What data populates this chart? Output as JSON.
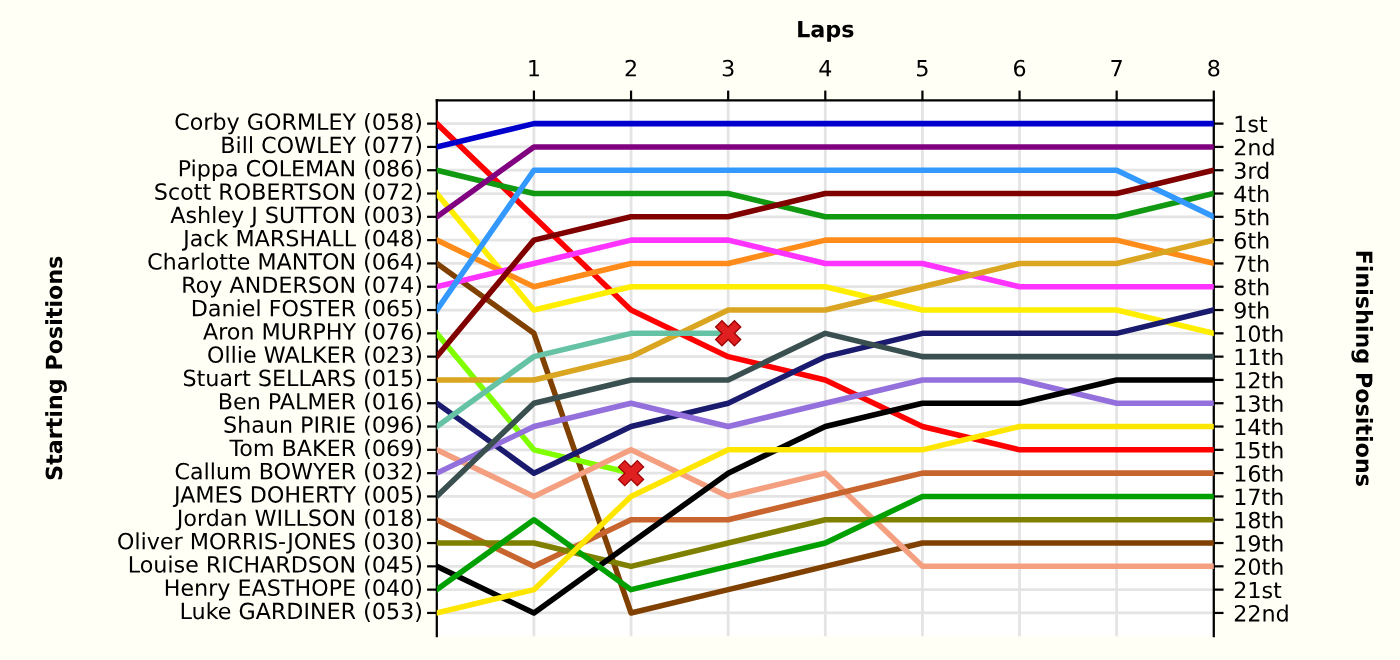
{
  "chart_data": {
    "type": "line",
    "xlabel": "Laps",
    "ylabel": "Finishing Positions",
    "annotations": [
      "Starting Positions",
      "Corby GORMLEY (058)",
      "Bill COWLEY (077)",
      "Pippa COLEMAN (086)",
      "Scott ROBERTSON (072)",
      "Ashley J SUTTON (003)",
      "Jack MARSHALL (048)",
      "Charlotte MANTON (064)",
      "Roy ANDERSON (074)",
      "Daniel FOSTER (065)",
      "Aron MURPHY (076)",
      "Ollie WALKER (023)",
      "Stuart SELLARS (015)",
      "Ben PALMER (016)",
      "Shaun PIRIE (096)",
      "Tom BAKER (069)",
      "Callum BOWYER (032)",
      "JAMES DOHERTY (005)",
      "Jordan WILLSON (018)",
      "Oliver MORRIS-JONES (030)",
      "Louise RICHARDSON (045)",
      "Henry EASTHOPE (040)",
      "Luke GARDINER (053)"
    ],
    "x": [
      0,
      1,
      2,
      3,
      4,
      5,
      6,
      7,
      8
    ],
    "xlim": [
      0,
      8
    ],
    "xticks": [
      1,
      2,
      3,
      4,
      5,
      6,
      7,
      8
    ],
    "ylim": [
      23,
      0
    ],
    "grid": true,
    "legend": false,
    "marker": "none",
    "line_style": "solid",
    "yticks": [
      {
        "value": 1,
        "label": "1st"
      },
      {
        "value": 2,
        "label": "2nd"
      },
      {
        "value": 3,
        "label": "3rd"
      },
      {
        "value": 4,
        "label": "4th"
      },
      {
        "value": 5,
        "label": "5th"
      },
      {
        "value": 6,
        "label": "6th"
      },
      {
        "value": 7,
        "label": "7th"
      },
      {
        "value": 8,
        "label": "8th"
      },
      {
        "value": 9,
        "label": "9th"
      },
      {
        "value": 10,
        "label": "10th"
      },
      {
        "value": 11,
        "label": "11th"
      },
      {
        "value": 12,
        "label": "12th"
      },
      {
        "value": 13,
        "label": "13th"
      },
      {
        "value": 14,
        "label": "14th"
      },
      {
        "value": 15,
        "label": "15th"
      },
      {
        "value": 16,
        "label": "16th"
      },
      {
        "value": 17,
        "label": "17th"
      },
      {
        "value": 18,
        "label": "18th"
      },
      {
        "value": 19,
        "label": "19th"
      },
      {
        "value": 20,
        "label": "20th"
      },
      {
        "value": 21,
        "label": "21st"
      },
      {
        "value": 22,
        "label": "22nd"
      }
    ],
    "series": [
      {
        "color": "#ff0000",
        "values": [
          1,
          5,
          9,
          11,
          12,
          14,
          15,
          15,
          15
        ]
      },
      {
        "color": "#0000cc",
        "values": [
          2,
          1,
          1,
          1,
          1,
          1,
          1,
          1,
          1
        ]
      },
      {
        "color": "#119911",
        "values": [
          3,
          4,
          4,
          4,
          5,
          5,
          5,
          5,
          4
        ]
      },
      {
        "color": "#ffee00",
        "values": [
          4,
          9,
          8,
          8,
          8,
          9,
          9,
          9,
          10
        ]
      },
      {
        "color": "#800080",
        "values": [
          5,
          2,
          2,
          2,
          2,
          2,
          2,
          2,
          2
        ]
      },
      {
        "color": "#ff8c1a",
        "values": [
          6,
          8,
          7,
          7,
          6,
          6,
          6,
          6,
          7
        ]
      },
      {
        "color": "#804000",
        "values": [
          7,
          10,
          22,
          21,
          20,
          19,
          19,
          19,
          19
        ]
      },
      {
        "color": "#ff33ff",
        "values": [
          8,
          7,
          6,
          6,
          7,
          7,
          8,
          8,
          8
        ]
      },
      {
        "color": "#3399ff",
        "values": [
          9,
          3,
          3,
          3,
          3,
          3,
          3,
          3,
          5
        ]
      },
      {
        "color": "#80ff00",
        "values": [
          10,
          15,
          16,
          null,
          null,
          null,
          null,
          null,
          null
        ]
      },
      {
        "color": "#800000",
        "values": [
          11,
          6,
          5,
          5,
          4,
          4,
          4,
          4,
          3
        ]
      },
      {
        "color": "#daa520",
        "values": [
          12,
          12,
          11,
          9,
          9,
          8,
          7,
          7,
          6
        ]
      },
      {
        "color": "#1a1a6e",
        "values": [
          13,
          16,
          14,
          13,
          11,
          10,
          10,
          10,
          9
        ]
      },
      {
        "color": "#66c2a5",
        "values": [
          14,
          11,
          10,
          10,
          null,
          null,
          null,
          null,
          null
        ]
      },
      {
        "color": "#f4a080",
        "values": [
          15,
          17,
          15,
          17,
          16,
          20,
          20,
          20,
          20
        ]
      },
      {
        "color": "#9370db",
        "values": [
          16,
          14,
          13,
          14,
          13,
          12,
          12,
          13,
          13
        ]
      },
      {
        "color": "#3a5050",
        "values": [
          17,
          13,
          12,
          12,
          10,
          11,
          11,
          11,
          11
        ]
      },
      {
        "color": "#c8642d",
        "values": [
          18,
          20,
          18,
          18,
          17,
          16,
          16,
          16,
          16
        ]
      },
      {
        "color": "#808000",
        "values": [
          19,
          19,
          20,
          19,
          18,
          18,
          18,
          18,
          18
        ]
      },
      {
        "color": "#000000",
        "values": [
          20,
          22,
          19,
          16,
          14,
          13,
          13,
          12,
          12
        ]
      },
      {
        "color": "#00a000",
        "values": [
          21,
          18,
          21,
          20,
          19,
          17,
          17,
          17,
          17
        ]
      },
      {
        "color": "#ffe600",
        "values": [
          22,
          21,
          17,
          15,
          15,
          15,
          14,
          14,
          14
        ]
      },
      {
        "type": "scatter",
        "marker": "cross",
        "color": "#e02020",
        "x": [
          2,
          3
        ],
        "values": [
          16,
          10
        ]
      }
    ]
  }
}
